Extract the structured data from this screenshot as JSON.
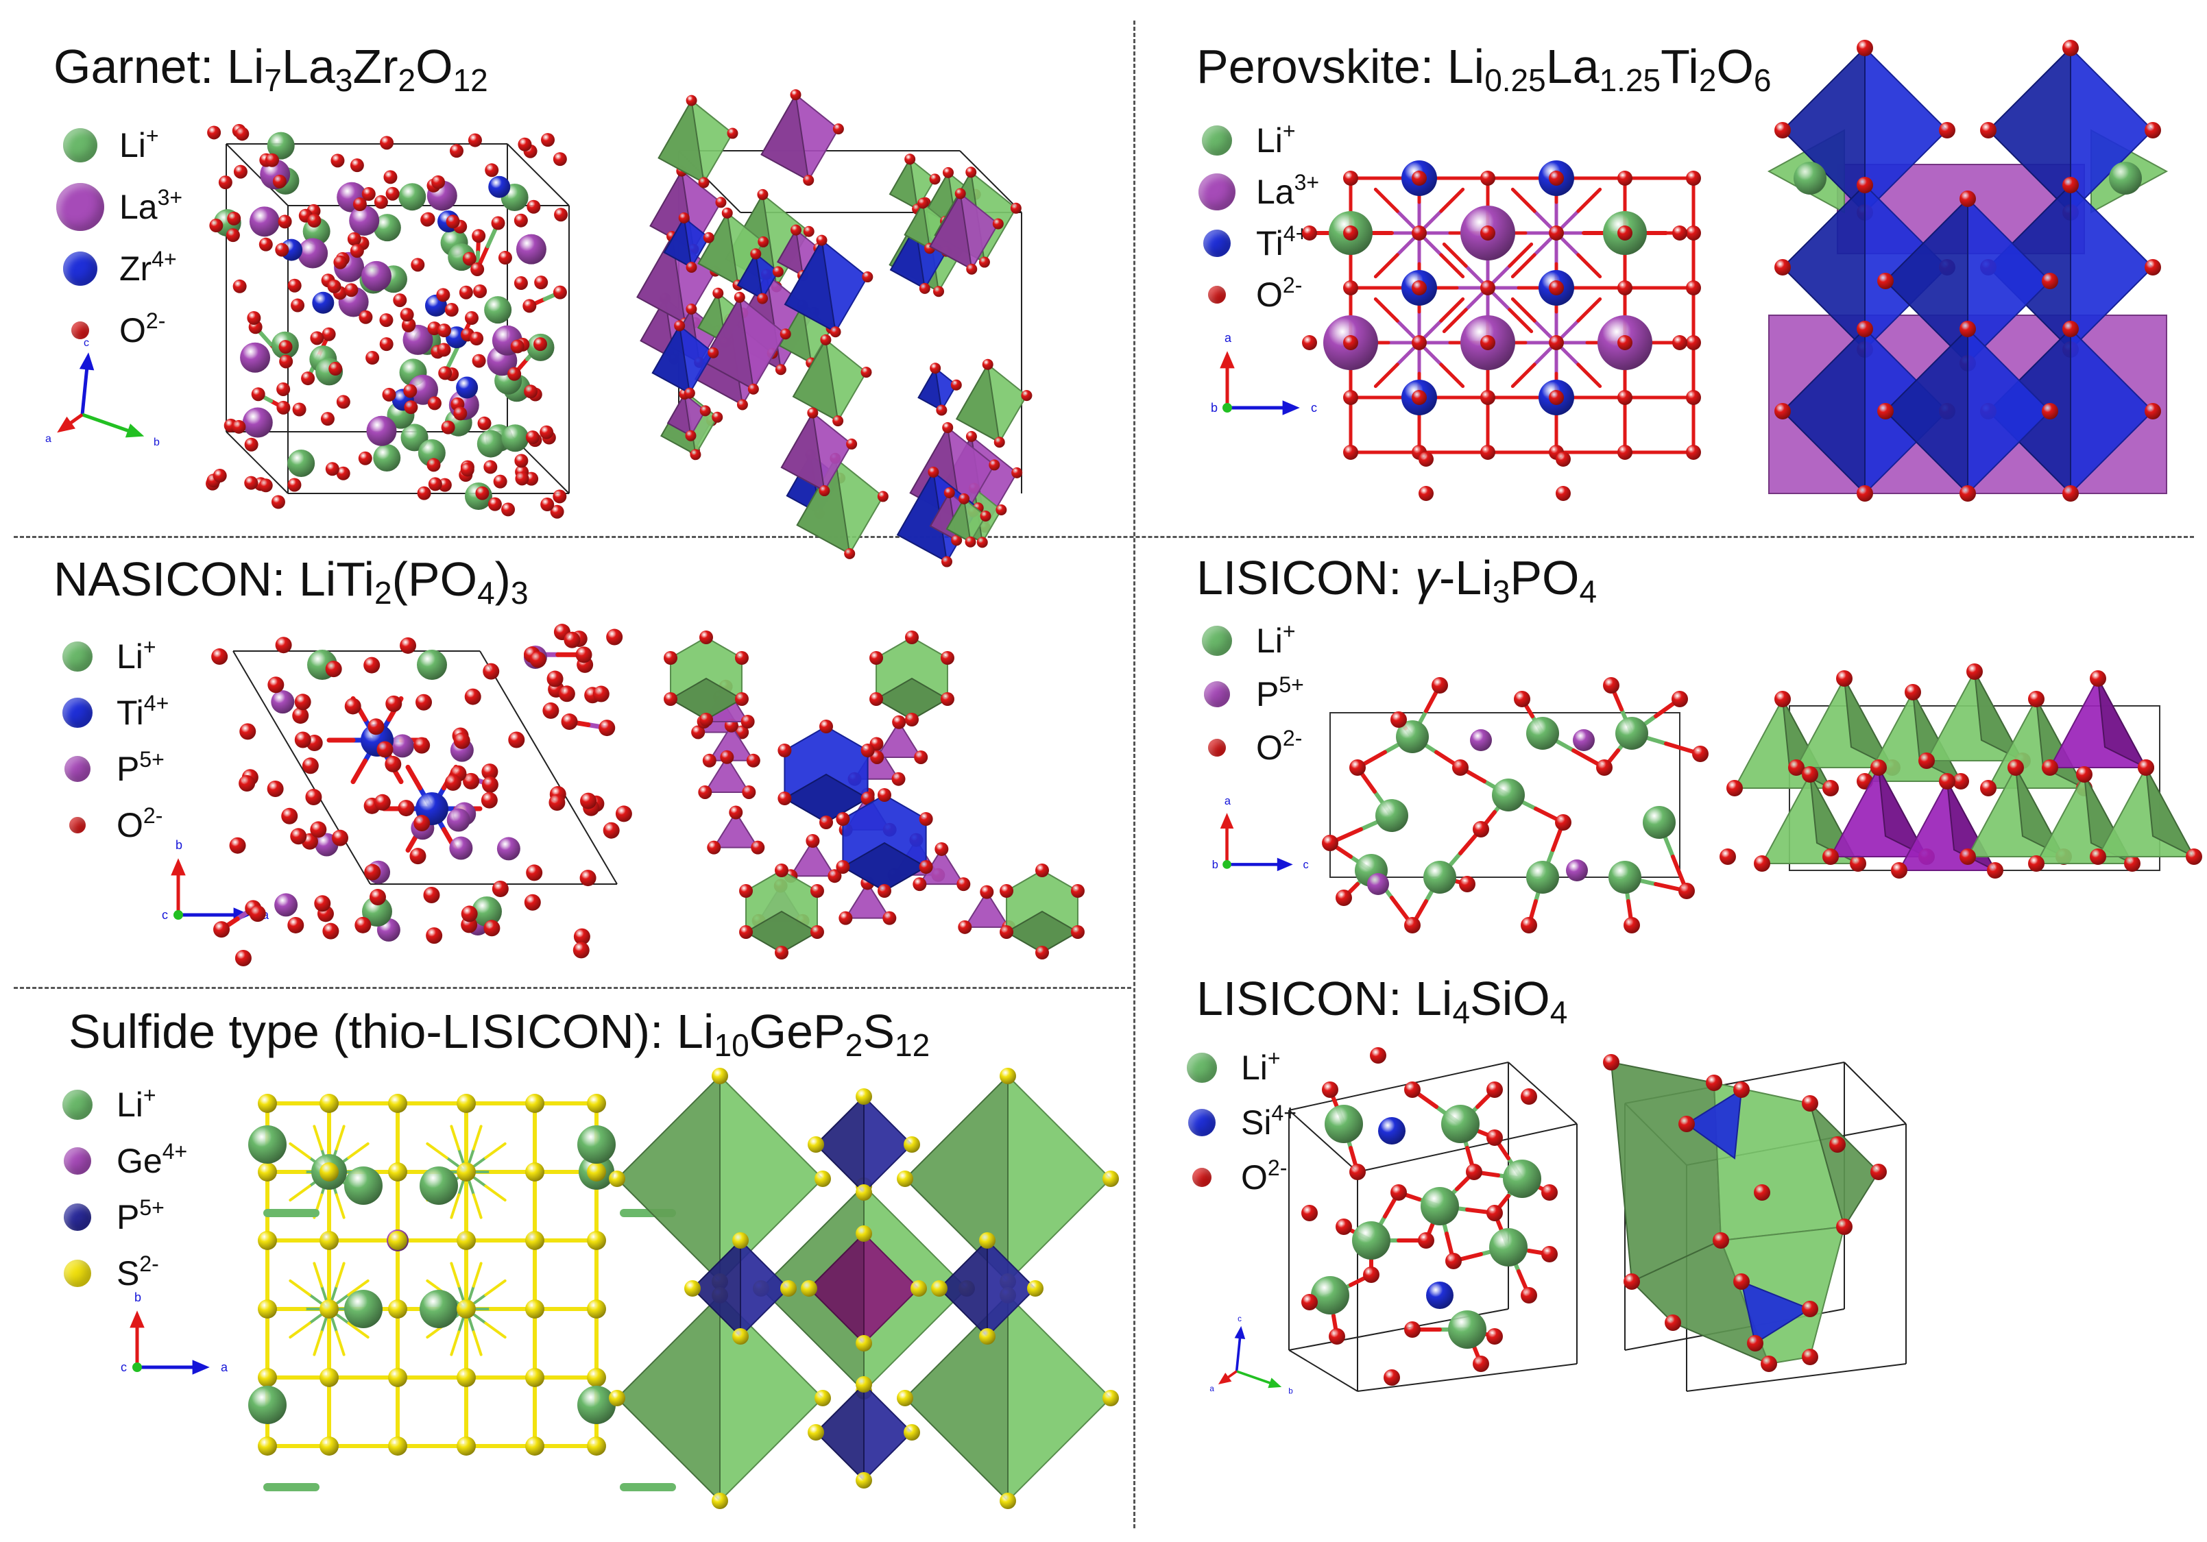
{
  "panels": {
    "garnet": {
      "title_prefix": "Garnet: ",
      "formula": [
        [
          "Li",
          "7"
        ],
        [
          "La",
          "3"
        ],
        [
          "Zr",
          "2"
        ],
        [
          "O",
          "12"
        ]
      ],
      "legend": [
        {
          "symbol": "Li",
          "charge": "+",
          "color": "#6ab86a"
        },
        {
          "symbol": "La",
          "charge": "3+",
          "color": "#a64bb8"
        },
        {
          "symbol": "Zr",
          "charge": "4+",
          "color": "#1f2fd8"
        },
        {
          "symbol": "O",
          "charge": "2-",
          "color": "#e01818"
        }
      ],
      "axes": {
        "up": "c",
        "left": "a",
        "right": "b"
      }
    },
    "perovskite": {
      "title_prefix": "Perovskite: ",
      "formula": [
        [
          "Li",
          "0.25"
        ],
        [
          "La",
          "1.25"
        ],
        [
          "Ti",
          "2"
        ],
        [
          "O",
          "6"
        ]
      ],
      "legend": [
        {
          "symbol": "Li",
          "charge": "+",
          "color": "#6ab86a"
        },
        {
          "symbol": "La",
          "charge": "3+",
          "color": "#a64bb8"
        },
        {
          "symbol": "Ti",
          "charge": "4+",
          "color": "#1f2fd8"
        },
        {
          "symbol": "O",
          "charge": "2-",
          "color": "#e01818"
        }
      ],
      "axes": {
        "up": "a",
        "left": "b",
        "right": "c"
      }
    },
    "nasicon": {
      "title_prefix": "NASICON: ",
      "formula": [
        [
          "LiTi",
          "2"
        ],
        [
          "(PO",
          "4"
        ],
        [
          ")",
          "3"
        ]
      ],
      "legend": [
        {
          "symbol": "Li",
          "charge": "+",
          "color": "#6ab86a"
        },
        {
          "symbol": "Ti",
          "charge": "4+",
          "color": "#1f2fd8"
        },
        {
          "symbol": "P",
          "charge": "5+",
          "color": "#a64bb8"
        },
        {
          "symbol": "O",
          "charge": "2-",
          "color": "#e01818"
        }
      ],
      "axes": {
        "up": "b",
        "left": "c",
        "right": "a"
      }
    },
    "lisicon_li3po4": {
      "title_prefix": "LISICON: ",
      "gamma": "γ",
      "formula": [
        [
          "-Li",
          "3"
        ],
        [
          "PO",
          "4"
        ]
      ],
      "legend": [
        {
          "symbol": "Li",
          "charge": "+",
          "color": "#6ab86a"
        },
        {
          "symbol": "P",
          "charge": "5+",
          "color": "#a64bb8"
        },
        {
          "symbol": "O",
          "charge": "2-",
          "color": "#e01818"
        }
      ],
      "axes": {
        "up": "a",
        "left": "b",
        "right": "c"
      }
    },
    "sulfide": {
      "title_prefix": "Sulfide type (thio-LISICON): ",
      "formula": [
        [
          "Li",
          "10"
        ],
        [
          "GeP",
          "2"
        ],
        [
          "S",
          "12"
        ]
      ],
      "legend": [
        {
          "symbol": "Li",
          "charge": "+",
          "color": "#6ab86a"
        },
        {
          "symbol": "Ge",
          "charge": "4+",
          "color": "#a64bb8"
        },
        {
          "symbol": "P",
          "charge": "5+",
          "color": "#2a2a9a"
        },
        {
          "symbol": "S",
          "charge": "2-",
          "color": "#f2e20e"
        }
      ],
      "axes": {
        "up": "b",
        "left": "c",
        "right": "a"
      }
    },
    "lisicon_li4sio4": {
      "title_prefix": "LISICON: ",
      "formula": [
        [
          "Li",
          "4"
        ],
        [
          "SiO",
          "4"
        ]
      ],
      "legend": [
        {
          "symbol": "Li",
          "charge": "+",
          "color": "#6ab86a"
        },
        {
          "symbol": "Si",
          "charge": "4+",
          "color": "#1f2fd8"
        },
        {
          "symbol": "O",
          "charge": "2-",
          "color": "#e01818"
        }
      ],
      "axes": {
        "up": "c",
        "left": "a",
        "right": "b"
      }
    }
  },
  "colors": {
    "li": "#6ab86a",
    "la": "#a64bb8",
    "zr": "#1f2fd8",
    "ti": "#1f2fd8",
    "p_purple": "#a64bb8",
    "p_navy": "#2a2a9a",
    "o": "#e01818",
    "s": "#f2e20e",
    "li_poly": "#7cc86c",
    "axis_red": "#e01818",
    "axis_green": "#22c022",
    "axis_blue": "#1414d8"
  }
}
